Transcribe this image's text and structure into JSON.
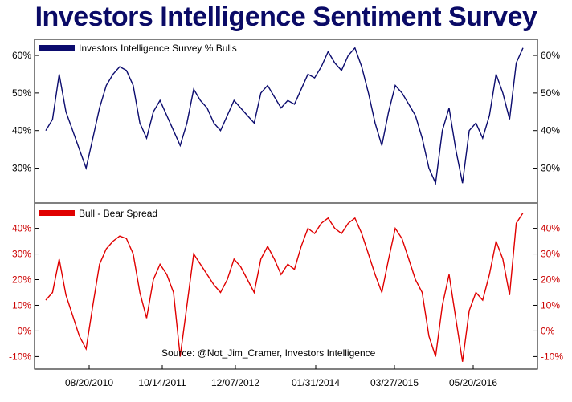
{
  "title": "Investors Intelligence Sentiment Survey",
  "source": "Source: @Not_Jim_Cramer, Investors Intelligence",
  "x_ticks": [
    "08/20/2010",
    "10/14/2011",
    "12/07/2012",
    "01/31/2014",
    "03/27/2015",
    "05/20/2016"
  ],
  "colors": {
    "bulls": "#0b0b6e",
    "spread": "#e00000",
    "title": "#0a0a66",
    "axis_text_bottom": "#cc0000"
  },
  "chart_data": [
    {
      "type": "line",
      "legend": "Investors Intelligence Survey % Bulls",
      "legend_position": "top-left",
      "grid": false,
      "ylim": [
        22,
        63
      ],
      "y_ticks": [
        "30%",
        "40%",
        "50%",
        "60%"
      ],
      "y_tick_values": [
        30,
        40,
        50,
        60
      ],
      "x_range": [
        0,
        71
      ],
      "x_tick_values": [
        7,
        21,
        35,
        49,
        63,
        77
      ],
      "series": [
        {
          "name": "Investors Intelligence Survey % Bulls",
          "x": [
            0,
            1,
            2,
            3,
            4,
            5,
            6,
            7,
            8,
            9,
            10,
            11,
            12,
            13,
            14,
            15,
            16,
            17,
            18,
            19,
            20,
            21,
            22,
            23,
            24,
            25,
            26,
            27,
            28,
            29,
            30,
            31,
            32,
            33,
            34,
            35,
            36,
            37,
            38,
            39,
            40,
            41,
            42,
            43,
            44,
            45,
            46,
            47,
            48,
            49,
            50,
            51,
            52,
            53,
            54,
            55,
            56,
            57,
            58,
            59,
            60,
            61,
            62,
            63,
            64,
            65,
            66,
            67,
            68,
            69,
            70,
            71
          ],
          "values": [
            40,
            43,
            55,
            45,
            40,
            35,
            30,
            38,
            46,
            52,
            55,
            57,
            56,
            52,
            42,
            38,
            45,
            48,
            44,
            40,
            36,
            42,
            51,
            48,
            46,
            42,
            40,
            44,
            48,
            46,
            44,
            42,
            50,
            52,
            49,
            46,
            48,
            47,
            51,
            55,
            54,
            57,
            61,
            58,
            56,
            60,
            62,
            57,
            50,
            42,
            36,
            45,
            52,
            50,
            47,
            44,
            38,
            30,
            26,
            40,
            46,
            35,
            26,
            40,
            42,
            38,
            44,
            55,
            50,
            43,
            58,
            62
          ]
        }
      ]
    },
    {
      "type": "line",
      "legend": "Bull - Bear Spread",
      "legend_position": "top-left",
      "grid": false,
      "ylim": [
        -13,
        48
      ],
      "y_ticks": [
        "-10%",
        "0%",
        "10%",
        "20%",
        "30%",
        "40%"
      ],
      "y_tick_values": [
        -10,
        0,
        10,
        20,
        30,
        40
      ],
      "x_range": [
        0,
        71
      ],
      "series": [
        {
          "name": "Bull - Bear Spread",
          "x": [
            0,
            1,
            2,
            3,
            4,
            5,
            6,
            7,
            8,
            9,
            10,
            11,
            12,
            13,
            14,
            15,
            16,
            17,
            18,
            19,
            20,
            21,
            22,
            23,
            24,
            25,
            26,
            27,
            28,
            29,
            30,
            31,
            32,
            33,
            34,
            35,
            36,
            37,
            38,
            39,
            40,
            41,
            42,
            43,
            44,
            45,
            46,
            47,
            48,
            49,
            50,
            51,
            52,
            53,
            54,
            55,
            56,
            57,
            58,
            59,
            60,
            61,
            62,
            63,
            64,
            65,
            66,
            67,
            68,
            69,
            70,
            71
          ],
          "values": [
            12,
            15,
            28,
            14,
            6,
            -2,
            -7,
            10,
            26,
            32,
            35,
            37,
            36,
            30,
            15,
            5,
            20,
            26,
            22,
            15,
            -10,
            10,
            30,
            26,
            22,
            18,
            15,
            20,
            28,
            25,
            20,
            15,
            28,
            33,
            28,
            22,
            26,
            24,
            33,
            40,
            38,
            42,
            44,
            40,
            38,
            42,
            44,
            38,
            30,
            22,
            15,
            28,
            40,
            36,
            28,
            20,
            15,
            -2,
            -10,
            10,
            22,
            5,
            -12,
            8,
            15,
            12,
            22,
            35,
            28,
            14,
            42,
            46
          ]
        }
      ]
    }
  ]
}
